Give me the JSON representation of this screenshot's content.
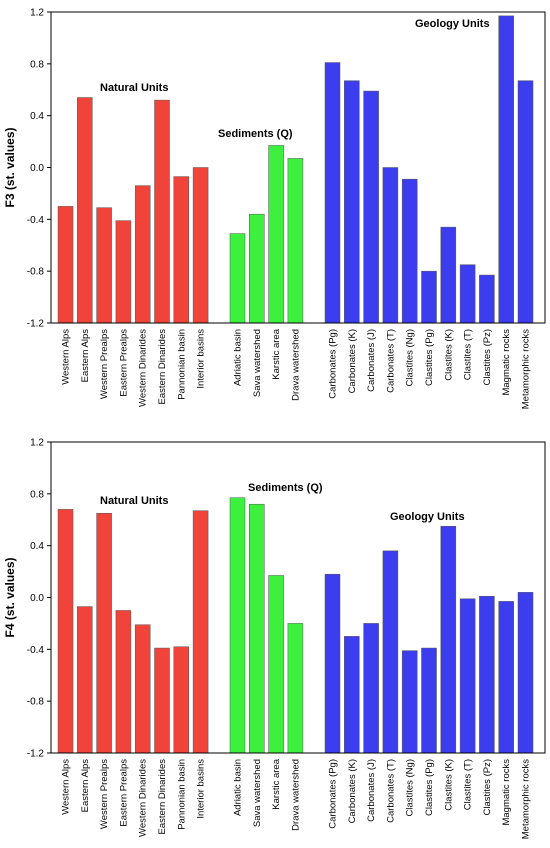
{
  "colors": {
    "natural": "#f0443a",
    "sediments": "#3ef03e",
    "geology": "#3d3df0",
    "axis": "#000000"
  },
  "chart_data": [
    {
      "type": "bar",
      "ylabel": "F3 (st. values)",
      "ylim": [
        -1.2,
        1.2
      ],
      "yticks": [
        "1.2",
        "0.8",
        "0.4",
        "0.0",
        "-0.4",
        "-0.8",
        "-1.2"
      ],
      "groups": [
        {
          "name": "Natural Units",
          "categories": [
            "Western Alps",
            "Eastern Alps",
            "Western Prealps",
            "Eastern Prealps",
            "Western Dinarides",
            "Eastern Dinarides",
            "Pannonian basin",
            "Interior basins"
          ],
          "values": [
            -0.3,
            0.54,
            -0.31,
            -0.41,
            -0.14,
            0.52,
            -0.07,
            0.0
          ]
        },
        {
          "name": "Sediments (Q)",
          "categories": [
            "Adriatic basin",
            "Sava watershed",
            "Karstic area",
            "Drava watershed"
          ],
          "values": [
            -0.51,
            -0.36,
            0.17,
            0.07
          ]
        },
        {
          "name": "Geology Units",
          "categories": [
            "Carbonates (Pg)",
            "Carbonates (K)",
            "Carbonates (J)",
            "Carbonates (T)",
            "Clastites (Ng)",
            "Clastites (Pg)",
            "Clastites (K)",
            "Clastites (T)",
            "Clastites (Pz)",
            "Magmatic rocks",
            "Metamorphic rocks"
          ],
          "values": [
            0.81,
            0.67,
            0.59,
            0.0,
            -0.09,
            -0.8,
            -0.46,
            -0.75,
            -0.83,
            1.17,
            0.67
          ]
        }
      ]
    },
    {
      "type": "bar",
      "ylabel": "F4 (st. values)",
      "ylim": [
        -1.2,
        1.2
      ],
      "yticks": [
        "1.2",
        "0.8",
        "0.4",
        "0.0",
        "-0.4",
        "-0.8",
        "-1.2"
      ],
      "groups": [
        {
          "name": "Natural Units",
          "categories": [
            "Western Alps",
            "Eastern Alps",
            "Western Prealps",
            "Eastern Prealps",
            "Western Dinarides",
            "Eastern Dinarides",
            "Pannonian basin",
            "Interior basins"
          ],
          "values": [
            0.68,
            -0.07,
            0.65,
            -0.1,
            -0.21,
            -0.39,
            -0.38,
            0.67
          ]
        },
        {
          "name": "Sediments (Q)",
          "categories": [
            "Adriatic basin",
            "Sava watershed",
            "Karstic area",
            "Drava watershed"
          ],
          "values": [
            0.77,
            0.72,
            0.17,
            -0.2
          ]
        },
        {
          "name": "Geology Units",
          "categories": [
            "Carbonates (Pg)",
            "Carbonates (K)",
            "Carbonates (J)",
            "Carbonates (T)",
            "Clastites (Ng)",
            "Clastites (Pg)",
            "Clastites (K)",
            "Clastites (T)",
            "Clastites (Pz)",
            "Magmatic rocks",
            "Metamorphic rocks"
          ],
          "values": [
            0.18,
            -0.3,
            -0.2,
            0.36,
            -0.41,
            -0.39,
            0.55,
            -0.01,
            0.01,
            -0.03,
            0.04
          ]
        }
      ]
    }
  ]
}
